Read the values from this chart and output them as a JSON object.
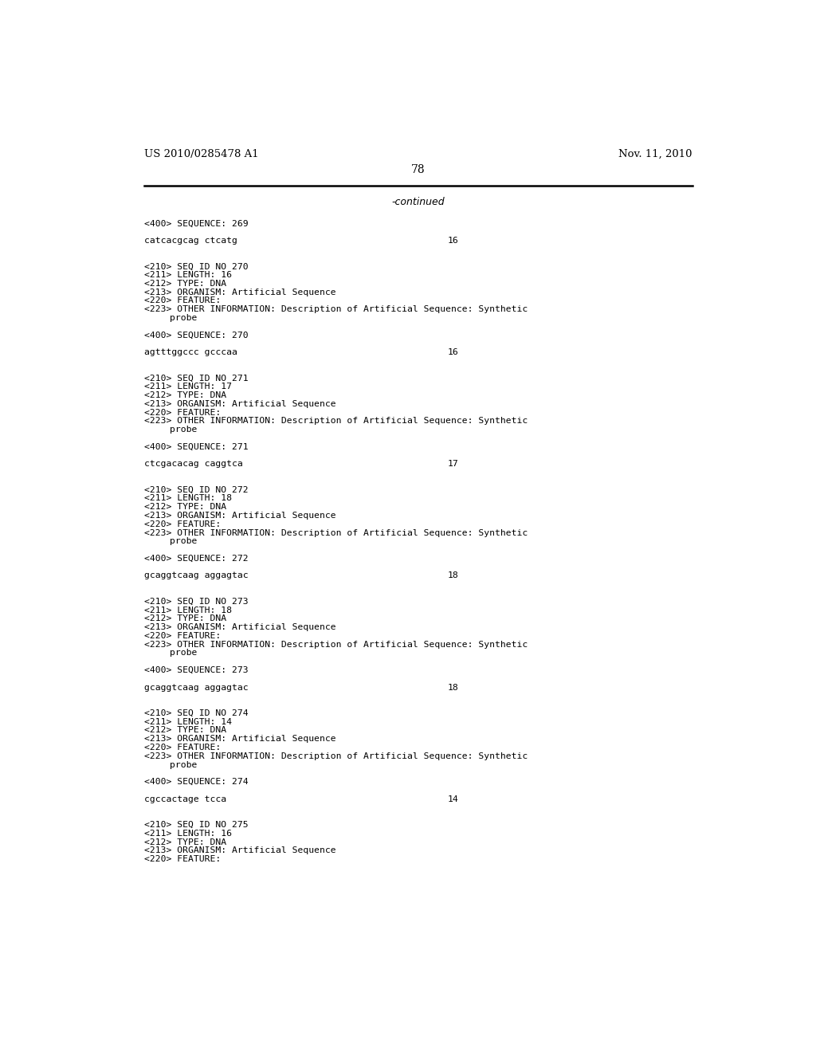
{
  "background_color": "#ffffff",
  "header_left": "US 2010/0285478 A1",
  "header_right": "Nov. 11, 2010",
  "page_number": "78",
  "continued_text": "-continued",
  "content": [
    {
      "type": "blank_small"
    },
    {
      "type": "seq400",
      "text": "<400> SEQUENCE: 269"
    },
    {
      "type": "blank_small"
    },
    {
      "type": "sequence",
      "text": "catcacgcag ctcatg",
      "number": "16"
    },
    {
      "type": "blank_large"
    },
    {
      "type": "seq210",
      "text": "<210> SEQ ID NO 270"
    },
    {
      "type": "seq210",
      "text": "<211> LENGTH: 16"
    },
    {
      "type": "seq210",
      "text": "<212> TYPE: DNA"
    },
    {
      "type": "seq210",
      "text": "<213> ORGANISM: Artificial Sequence"
    },
    {
      "type": "seq210",
      "text": "<220> FEATURE:"
    },
    {
      "type": "seq210",
      "text": "<223> OTHER INFORMATION: Description of Artificial Sequence: Synthetic"
    },
    {
      "type": "seq210_indent",
      "text": "probe"
    },
    {
      "type": "blank_small"
    },
    {
      "type": "seq400",
      "text": "<400> SEQUENCE: 270"
    },
    {
      "type": "blank_small"
    },
    {
      "type": "sequence",
      "text": "agtttggccc gcccaa",
      "number": "16"
    },
    {
      "type": "blank_large"
    },
    {
      "type": "seq210",
      "text": "<210> SEQ ID NO 271"
    },
    {
      "type": "seq210",
      "text": "<211> LENGTH: 17"
    },
    {
      "type": "seq210",
      "text": "<212> TYPE: DNA"
    },
    {
      "type": "seq210",
      "text": "<213> ORGANISM: Artificial Sequence"
    },
    {
      "type": "seq210",
      "text": "<220> FEATURE:"
    },
    {
      "type": "seq210",
      "text": "<223> OTHER INFORMATION: Description of Artificial Sequence: Synthetic"
    },
    {
      "type": "seq210_indent",
      "text": "probe"
    },
    {
      "type": "blank_small"
    },
    {
      "type": "seq400",
      "text": "<400> SEQUENCE: 271"
    },
    {
      "type": "blank_small"
    },
    {
      "type": "sequence",
      "text": "ctcgacacag caggtca",
      "number": "17"
    },
    {
      "type": "blank_large"
    },
    {
      "type": "seq210",
      "text": "<210> SEQ ID NO 272"
    },
    {
      "type": "seq210",
      "text": "<211> LENGTH: 18"
    },
    {
      "type": "seq210",
      "text": "<212> TYPE: DNA"
    },
    {
      "type": "seq210",
      "text": "<213> ORGANISM: Artificial Sequence"
    },
    {
      "type": "seq210",
      "text": "<220> FEATURE:"
    },
    {
      "type": "seq210",
      "text": "<223> OTHER INFORMATION: Description of Artificial Sequence: Synthetic"
    },
    {
      "type": "seq210_indent",
      "text": "probe"
    },
    {
      "type": "blank_small"
    },
    {
      "type": "seq400",
      "text": "<400> SEQUENCE: 272"
    },
    {
      "type": "blank_small"
    },
    {
      "type": "sequence",
      "text": "gcaggtcaag aggagtac",
      "number": "18"
    },
    {
      "type": "blank_large"
    },
    {
      "type": "seq210",
      "text": "<210> SEQ ID NO 273"
    },
    {
      "type": "seq210",
      "text": "<211> LENGTH: 18"
    },
    {
      "type": "seq210",
      "text": "<212> TYPE: DNA"
    },
    {
      "type": "seq210",
      "text": "<213> ORGANISM: Artificial Sequence"
    },
    {
      "type": "seq210",
      "text": "<220> FEATURE:"
    },
    {
      "type": "seq210",
      "text": "<223> OTHER INFORMATION: Description of Artificial Sequence: Synthetic"
    },
    {
      "type": "seq210_indent",
      "text": "probe"
    },
    {
      "type": "blank_small"
    },
    {
      "type": "seq400",
      "text": "<400> SEQUENCE: 273"
    },
    {
      "type": "blank_small"
    },
    {
      "type": "sequence",
      "text": "gcaggtcaag aggagtac",
      "number": "18"
    },
    {
      "type": "blank_large"
    },
    {
      "type": "seq210",
      "text": "<210> SEQ ID NO 274"
    },
    {
      "type": "seq210",
      "text": "<211> LENGTH: 14"
    },
    {
      "type": "seq210",
      "text": "<212> TYPE: DNA"
    },
    {
      "type": "seq210",
      "text": "<213> ORGANISM: Artificial Sequence"
    },
    {
      "type": "seq210",
      "text": "<220> FEATURE:"
    },
    {
      "type": "seq210",
      "text": "<223> OTHER INFORMATION: Description of Artificial Sequence: Synthetic"
    },
    {
      "type": "seq210_indent",
      "text": "probe"
    },
    {
      "type": "blank_small"
    },
    {
      "type": "seq400",
      "text": "<400> SEQUENCE: 274"
    },
    {
      "type": "blank_small"
    },
    {
      "type": "sequence",
      "text": "cgccactage tcca",
      "number": "14"
    },
    {
      "type": "blank_large"
    },
    {
      "type": "seq210",
      "text": "<210> SEQ ID NO 275"
    },
    {
      "type": "seq210",
      "text": "<211> LENGTH: 16"
    },
    {
      "type": "seq210",
      "text": "<212> TYPE: DNA"
    },
    {
      "type": "seq210",
      "text": "<213> ORGANISM: Artificial Sequence"
    },
    {
      "type": "seq210",
      "text": "<220> FEATURE:"
    }
  ]
}
